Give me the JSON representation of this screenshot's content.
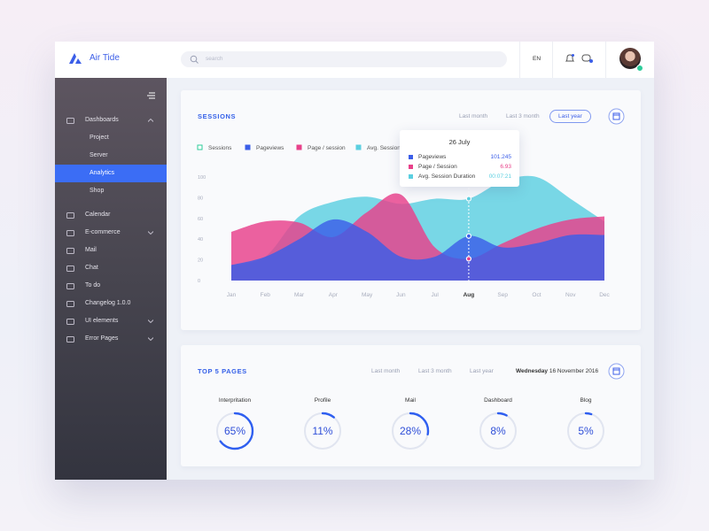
{
  "header": {
    "brand": "Air Tide",
    "search_placeholder": "search",
    "language": "EN"
  },
  "sidebar": {
    "items": [
      {
        "label": "Dashboards",
        "expanded": true,
        "children": [
          {
            "label": "Project"
          },
          {
            "label": "Server"
          },
          {
            "label": "Analytics",
            "active": true
          },
          {
            "label": "Shop"
          }
        ]
      },
      {
        "label": "Calendar"
      },
      {
        "label": "E-commerce",
        "submenu": true
      },
      {
        "label": "Mail"
      },
      {
        "label": "Chat"
      },
      {
        "label": "To do"
      },
      {
        "label": "Changelog 1.0.0"
      },
      {
        "label": "UI elements",
        "submenu": true
      },
      {
        "label": "Error Pages",
        "submenu": true
      }
    ]
  },
  "sessions": {
    "title": "SESSIONS",
    "filters": [
      {
        "label": "Last month"
      },
      {
        "label": "Last 3 month"
      },
      {
        "label": "Last year",
        "active": true
      }
    ]
  },
  "chart_data": {
    "type": "area",
    "categories": [
      "Jan",
      "Feb",
      "Mar",
      "Apr",
      "May",
      "Jun",
      "Jul",
      "Aug",
      "Sep",
      "Oct",
      "Nov",
      "Dec"
    ],
    "ylim": [
      0,
      100
    ],
    "yticks": [
      0,
      20,
      40,
      60,
      80,
      100
    ],
    "series": [
      {
        "name": "Sessions",
        "color": "#2ecc9a",
        "visible": false,
        "values": [
          null,
          null,
          null,
          null,
          null,
          null,
          null,
          null,
          null,
          null,
          null,
          null
        ]
      },
      {
        "name": "Avg. Session",
        "color": "#5bcfe0",
        "values": [
          15,
          23,
          62,
          76,
          81,
          74,
          79,
          79,
          96,
          100,
          79,
          57
        ]
      },
      {
        "name": "Page / session",
        "color": "#e8408a",
        "values": [
          47,
          57,
          56,
          42,
          66,
          83,
          32,
          21,
          36,
          50,
          59,
          62
        ]
      },
      {
        "name": "Pageviews",
        "color": "#3b5ee8",
        "values": [
          15,
          23,
          40,
          59,
          47,
          23,
          23,
          43,
          32,
          36,
          44,
          44
        ]
      }
    ],
    "legend_order": [
      0,
      3,
      2,
      1
    ],
    "tooltip": {
      "title": "26 July",
      "category": 7,
      "rows": [
        {
          "name": "Pageviews",
          "value": "101.245",
          "color": "#3b5ee8"
        },
        {
          "name": "Page / Session",
          "value": "6.93",
          "color": "#e8408a"
        },
        {
          "name": "Avg. Session Duration",
          "value": "00:07:21",
          "color": "#5bcfe0"
        }
      ]
    }
  },
  "top_pages": {
    "title": "TOP 5 PAGES",
    "filters": [
      {
        "label": "Last month"
      },
      {
        "label": "Last 3 month"
      },
      {
        "label": "Last year"
      }
    ],
    "weekday": "Wednesday",
    "date": "16 November 2016",
    "items": [
      {
        "label": "Interpritation",
        "value": 65,
        "value_label": "65%"
      },
      {
        "label": "Profile",
        "value": 11,
        "value_label": "11%"
      },
      {
        "label": "Mail",
        "value": 28,
        "value_label": "28%"
      },
      {
        "label": "Dashboard",
        "value": 8,
        "value_label": "8%"
      },
      {
        "label": "Blog",
        "value": 5,
        "value_label": "5%"
      }
    ]
  }
}
